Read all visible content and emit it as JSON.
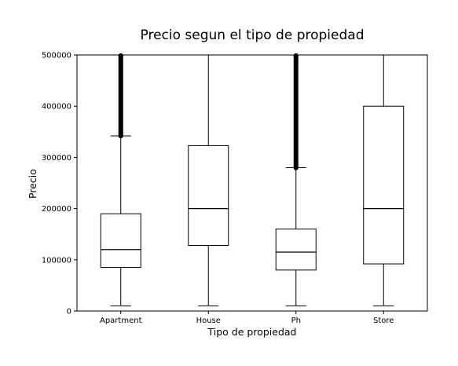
{
  "chart_data": {
    "type": "box",
    "title": "Precio segun el tipo de propiedad",
    "xlabel": "Tipo de propiedad",
    "ylabel": "Precio",
    "ylim": [
      0,
      500000
    ],
    "yticks": [
      "0",
      "100000",
      "200000",
      "300000",
      "400000",
      "500000"
    ],
    "grid": false,
    "categories": [
      "Apartment",
      "House",
      "Ph",
      "Store"
    ],
    "boxes": [
      {
        "category": "Apartment",
        "whisker_low": 10000,
        "q1": 85000,
        "median": 120000,
        "q3": 190000,
        "whisker_high": 342000,
        "outliers_range": [
          342000,
          500000
        ]
      },
      {
        "category": "House",
        "whisker_low": 10000,
        "q1": 128000,
        "median": 200000,
        "q3": 323000,
        "whisker_high": 500000,
        "outliers_range": null
      },
      {
        "category": "Ph",
        "whisker_low": 10000,
        "q1": 80000,
        "median": 115000,
        "q3": 160000,
        "whisker_high": 280000,
        "outliers_range": [
          280000,
          500000
        ]
      },
      {
        "category": "Store",
        "whisker_low": 10000,
        "q1": 92000,
        "median": 200000,
        "q3": 400000,
        "whisker_high": 500000,
        "outliers_range": null
      }
    ]
  }
}
